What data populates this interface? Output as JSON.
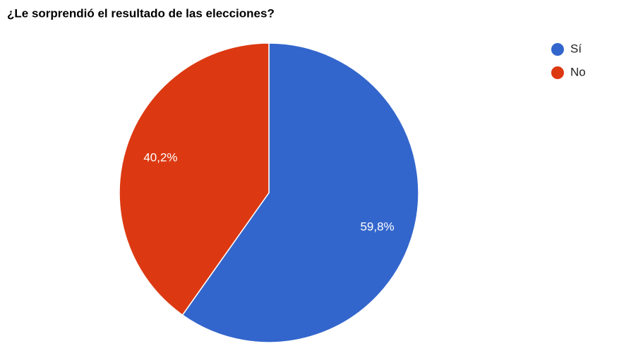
{
  "chart_data": {
    "type": "pie",
    "title": "¿Le sorprendió el resultado de las elecciones?",
    "categories": [
      "Sí",
      "No"
    ],
    "values": [
      59.8,
      40.2
    ],
    "value_labels": [
      "59,8%",
      "40,2%"
    ],
    "colors": [
      "#3366cc",
      "#dc3912"
    ],
    "legend": "top-right"
  }
}
